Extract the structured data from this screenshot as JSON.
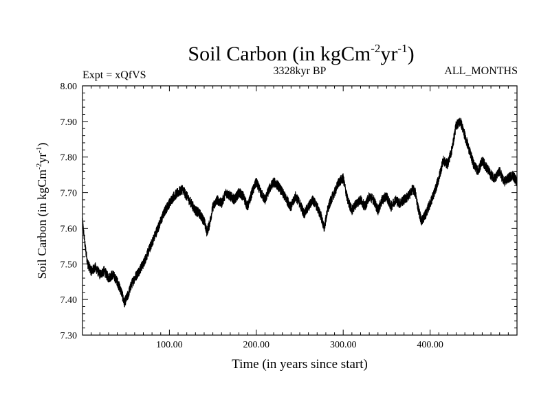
{
  "chart_data": {
    "type": "line",
    "title": "Soil Carbon (in kgCm",
    "title_sup1": "-2",
    "title_mid": "yr",
    "title_sup2": "-1",
    "title_end": ")",
    "subtitle_left": "Expt = xQfVS",
    "subtitle_center": "3328kyr BP",
    "subtitle_right": "ALL_MONTHS",
    "xlabel": "Time (in years since start)",
    "ylabel": "Soil Carbon (in kgCm",
    "ylabel_sup1": "-2",
    "ylabel_mid": "yr",
    "ylabel_sup2": "-1",
    "ylabel_end": ")",
    "xlim": [
      0,
      500
    ],
    "ylim": [
      7.3,
      8.0
    ],
    "x_ticks": [
      100,
      200,
      300,
      400
    ],
    "x_tick_labels": [
      "100.00",
      "200.00",
      "300.00",
      "400.00"
    ],
    "y_ticks": [
      7.3,
      7.4,
      7.5,
      7.6,
      7.7,
      7.8,
      7.9,
      8.0
    ],
    "y_tick_labels": [
      "7.30",
      "7.40",
      "7.50",
      "7.60",
      "7.70",
      "7.80",
      "7.90",
      "8.00"
    ],
    "series": [
      {
        "name": "Soil Carbon",
        "color": "#000000",
        "x": [
          0,
          3,
          6,
          10,
          15,
          20,
          25,
          30,
          35,
          40,
          45,
          48,
          52,
          56,
          60,
          65,
          70,
          75,
          80,
          85,
          90,
          95,
          100,
          105,
          110,
          115,
          120,
          125,
          130,
          135,
          140,
          143,
          146,
          150,
          155,
          160,
          165,
          170,
          175,
          180,
          185,
          190,
          195,
          200,
          205,
          210,
          215,
          220,
          225,
          230,
          235,
          240,
          245,
          250,
          255,
          260,
          265,
          270,
          275,
          278,
          282,
          286,
          290,
          295,
          300,
          305,
          310,
          315,
          320,
          325,
          330,
          335,
          340,
          345,
          350,
          355,
          360,
          365,
          370,
          375,
          380,
          383,
          386,
          390,
          395,
          400,
          405,
          410,
          415,
          420,
          425,
          430,
          435,
          440,
          445,
          450,
          455,
          460,
          465,
          470,
          475,
          480,
          485,
          490,
          495,
          500
        ],
        "values": [
          7.62,
          7.55,
          7.5,
          7.48,
          7.49,
          7.47,
          7.48,
          7.46,
          7.47,
          7.45,
          7.42,
          7.39,
          7.41,
          7.44,
          7.46,
          7.48,
          7.5,
          7.53,
          7.56,
          7.59,
          7.62,
          7.65,
          7.67,
          7.69,
          7.7,
          7.71,
          7.69,
          7.67,
          7.65,
          7.64,
          7.62,
          7.59,
          7.61,
          7.66,
          7.68,
          7.67,
          7.7,
          7.69,
          7.68,
          7.7,
          7.69,
          7.66,
          7.7,
          7.73,
          7.7,
          7.68,
          7.71,
          7.73,
          7.72,
          7.7,
          7.68,
          7.66,
          7.69,
          7.67,
          7.64,
          7.66,
          7.68,
          7.66,
          7.63,
          7.6,
          7.65,
          7.68,
          7.7,
          7.73,
          7.74,
          7.68,
          7.65,
          7.67,
          7.68,
          7.66,
          7.69,
          7.68,
          7.65,
          7.68,
          7.69,
          7.66,
          7.68,
          7.67,
          7.68,
          7.69,
          7.71,
          7.7,
          7.66,
          7.62,
          7.64,
          7.67,
          7.7,
          7.74,
          7.79,
          7.78,
          7.82,
          7.89,
          7.9,
          7.86,
          7.82,
          7.78,
          7.76,
          7.79,
          7.77,
          7.75,
          7.74,
          7.76,
          7.73,
          7.74,
          7.75,
          7.73
        ]
      }
    ]
  }
}
